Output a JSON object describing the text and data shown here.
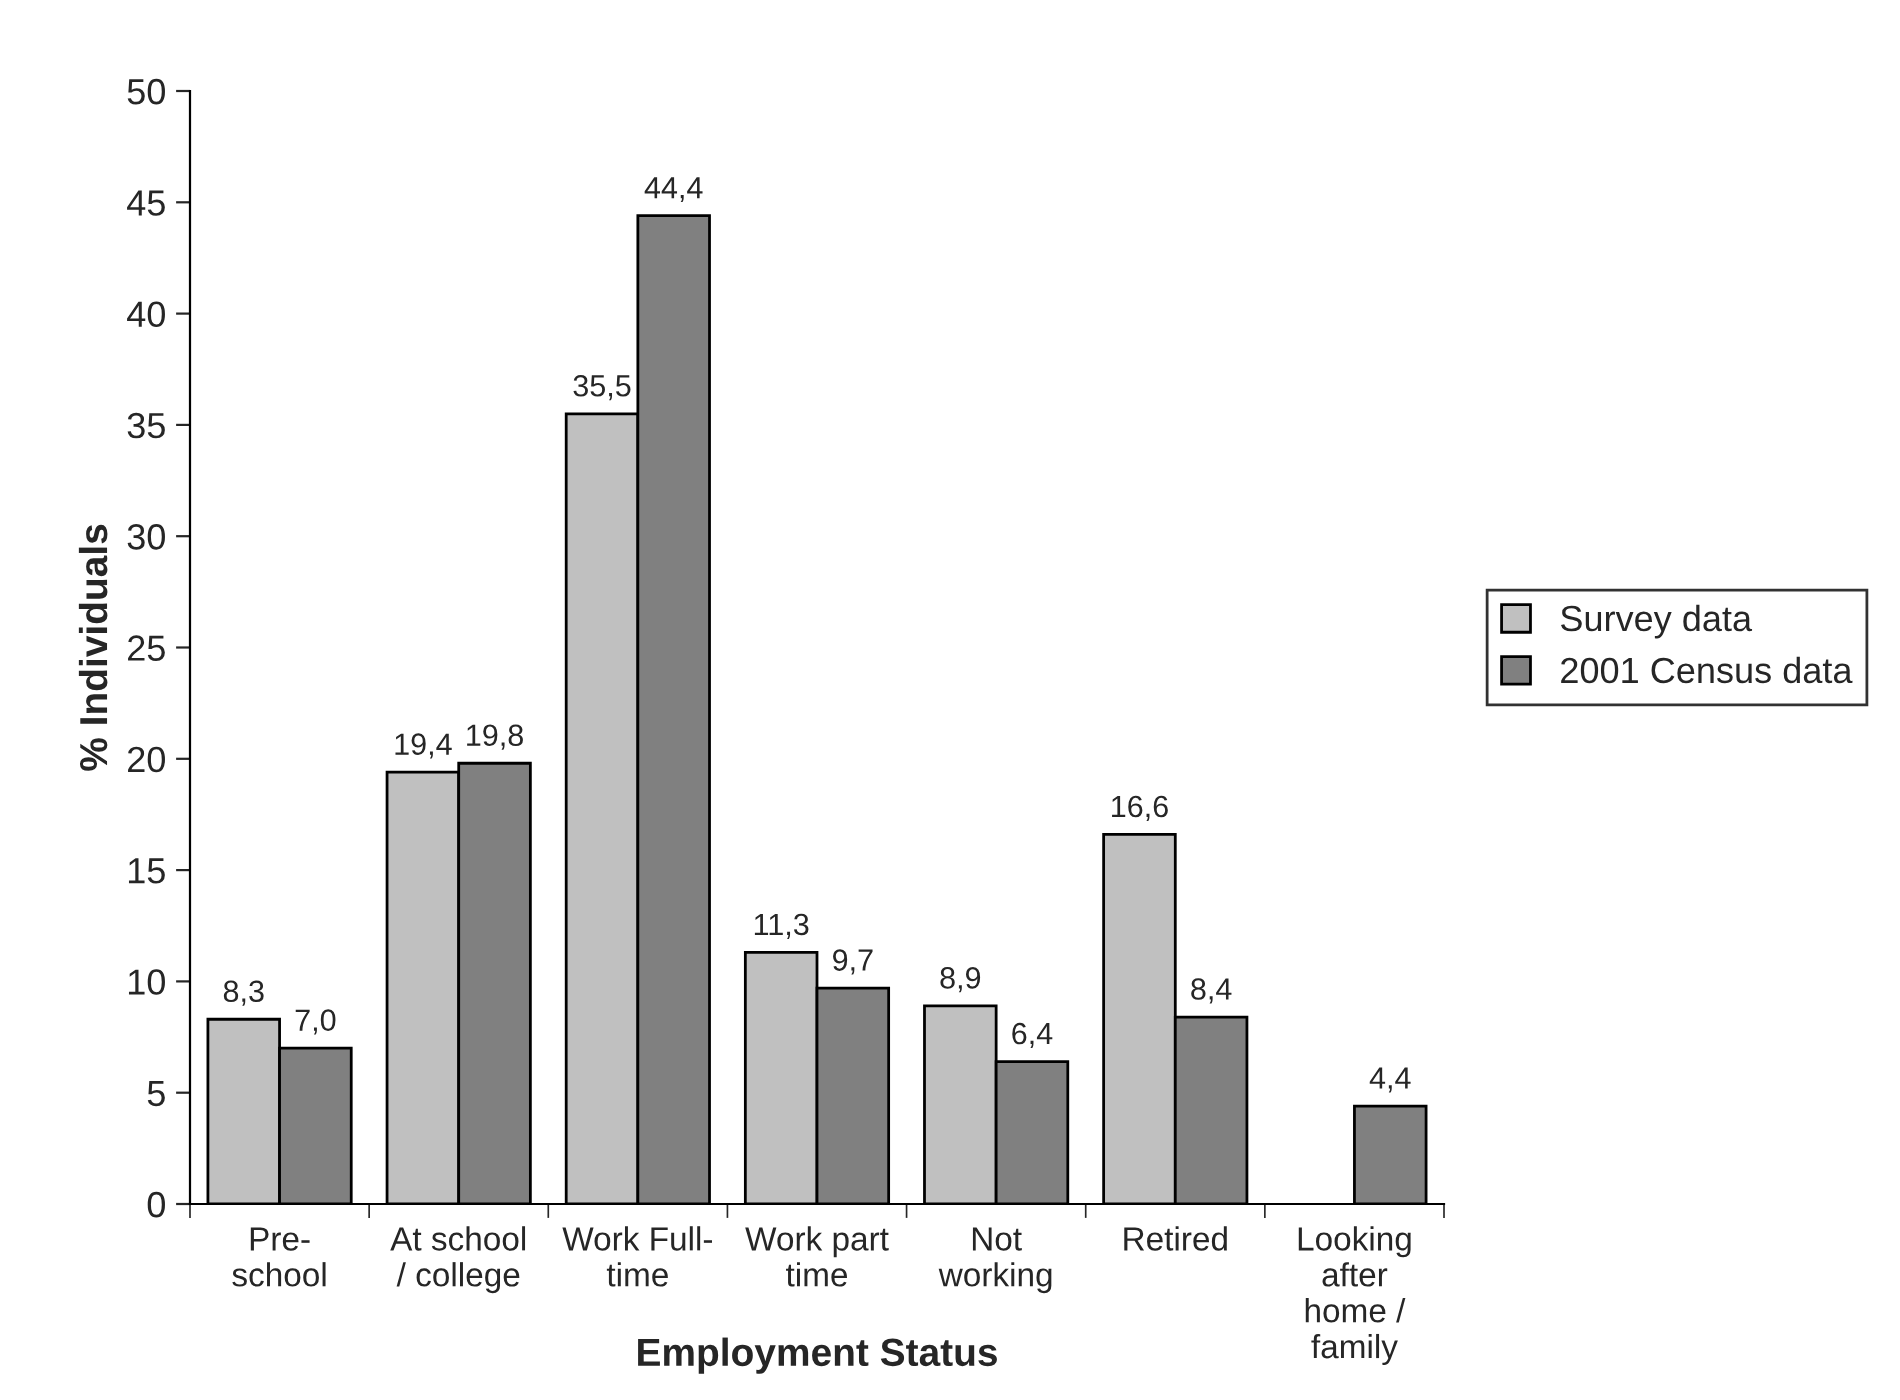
{
  "chart_data": {
    "type": "bar",
    "xlabel": "Employment Status",
    "ylabel": "% Individuals",
    "categories": [
      "Pre-\nschool",
      "At school\n/ college",
      "Work Full-\ntime",
      "Work part\ntime",
      "Not\nworking",
      "Retired",
      "Looking\nafter\nhome /\nfamily"
    ],
    "series": [
      {
        "name": "Survey data",
        "color": "#c0c0c0",
        "values": [
          8.3,
          19.4,
          35.5,
          11.3,
          8.9,
          16.6,
          null
        ],
        "value_labels": [
          "8,3",
          "19,4",
          "35,5",
          "11,3",
          "8,9",
          "16,6",
          null
        ]
      },
      {
        "name": "2001 Census data",
        "color": "#808080",
        "values": [
          7.0,
          19.8,
          44.4,
          9.7,
          6.4,
          8.4,
          4.4
        ],
        "value_labels": [
          "7,0",
          "19,8",
          "44,4",
          "9,7",
          "6,4",
          "8,4",
          "4,4"
        ]
      }
    ],
    "ylim": [
      0,
      50
    ],
    "yticks": [
      0,
      5,
      10,
      15,
      20,
      25,
      30,
      35,
      40,
      45,
      50
    ],
    "grid": false,
    "legend": "right"
  }
}
